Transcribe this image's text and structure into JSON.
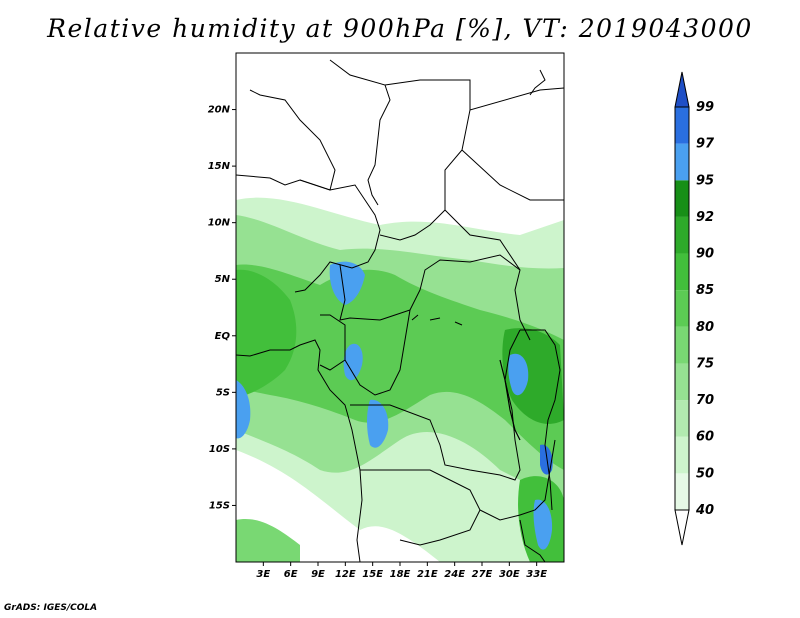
{
  "title": "Relative humidity at 900hPa [%], VT: 2019043000",
  "credit": "GrADS: IGES/COLA",
  "map": {
    "lon_range": [
      0,
      36
    ],
    "lat_range": [
      -20,
      25
    ],
    "lat_ticks": [
      {
        "lat": 20,
        "label": "20N"
      },
      {
        "lat": 15,
        "label": "15N"
      },
      {
        "lat": 10,
        "label": "10N"
      },
      {
        "lat": 5,
        "label": "5N"
      },
      {
        "lat": 0,
        "label": "EQ"
      },
      {
        "lat": -5,
        "label": "5S"
      },
      {
        "lat": -10,
        "label": "10S"
      },
      {
        "lat": -15,
        "label": "15S"
      }
    ],
    "lon_ticks": [
      {
        "lon": 3,
        "label": "3E"
      },
      {
        "lon": 6,
        "label": "6E"
      },
      {
        "lon": 9,
        "label": "9E"
      },
      {
        "lon": 12,
        "label": "12E"
      },
      {
        "lon": 15,
        "label": "15E"
      },
      {
        "lon": 18,
        "label": "18E"
      },
      {
        "lon": 21,
        "label": "21E"
      },
      {
        "lon": 24,
        "label": "24E"
      },
      {
        "lon": 27,
        "label": "27E"
      },
      {
        "lon": 30,
        "label": "30E"
      },
      {
        "lon": 33,
        "label": "33E"
      }
    ]
  },
  "colorbar": {
    "levels": [
      "40",
      "50",
      "60",
      "70",
      "75",
      "80",
      "85",
      "90",
      "92",
      "95",
      "97",
      "99"
    ],
    "colors": [
      "#ffffff",
      "#e6f9e6",
      "#cdf4cc",
      "#b2eab0",
      "#96e192",
      "#79d873",
      "#5ccb54",
      "#42bf3b",
      "#2eaa2a",
      "#178f17",
      "#4aa0f0",
      "#2a6fe0",
      "#1f4fc6"
    ]
  }
}
